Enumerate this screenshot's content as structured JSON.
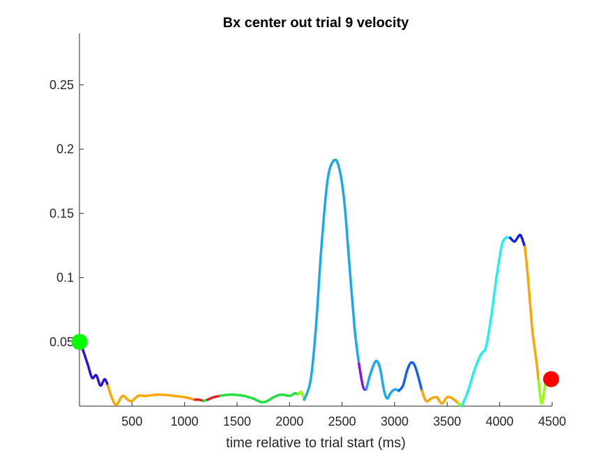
{
  "chart_data": {
    "type": "line",
    "title": "Bx  center out trial 9 velocity",
    "xlabel": "time relative to trial start (ms)",
    "ylabel": "",
    "xlim": [
      0,
      4500
    ],
    "ylim": [
      0,
      0.29
    ],
    "xticks": [
      500,
      1000,
      1500,
      2000,
      2500,
      3000,
      3500,
      4000,
      4500
    ],
    "yticks": [
      0.05,
      0.1,
      0.15,
      0.2,
      0.25
    ],
    "xtick_labels": [
      "500",
      "1000",
      "1500",
      "2000",
      "2500",
      "3000",
      "3500",
      "4000",
      "4500"
    ],
    "ytick_labels": [
      "0.05",
      "0.1",
      "0.15",
      "0.2",
      "0.25"
    ],
    "grid": false,
    "segments": [
      {
        "color": "#2a10e6",
        "points": [
          [
            0,
            0.05
          ],
          [
            40,
            0.042
          ],
          [
            80,
            0.032
          ],
          [
            120,
            0.022
          ],
          [
            160,
            0.024
          ],
          [
            200,
            0.016
          ],
          [
            240,
            0.021
          ],
          [
            270,
            0.016
          ]
        ]
      },
      {
        "color": "#ffa500",
        "points": [
          [
            270,
            0.016
          ],
          [
            310,
            0.006
          ],
          [
            350,
            0.001
          ],
          [
            390,
            0.006
          ],
          [
            420,
            0.008
          ],
          [
            460,
            0.005
          ],
          [
            500,
            0.004
          ],
          [
            560,
            0.008
          ],
          [
            640,
            0.008
          ],
          [
            760,
            0.009
          ],
          [
            900,
            0.008
          ],
          [
            1000,
            0.007
          ],
          [
            1100,
            0.005
          ]
        ]
      },
      {
        "color": "#e02020",
        "points": [
          [
            1100,
            0.005
          ],
          [
            1140,
            0.005
          ],
          [
            1180,
            0.004
          ]
        ]
      },
      {
        "color": "#20e040",
        "points": [
          [
            1180,
            0.004
          ],
          [
            1220,
            0.005
          ]
        ]
      },
      {
        "color": "#e02020",
        "points": [
          [
            1220,
            0.005
          ],
          [
            1280,
            0.007
          ],
          [
            1340,
            0.008
          ]
        ]
      },
      {
        "color": "#20e040",
        "points": [
          [
            1340,
            0.008
          ],
          [
            1440,
            0.009
          ],
          [
            1560,
            0.008
          ],
          [
            1650,
            0.006
          ],
          [
            1750,
            0.003
          ],
          [
            1850,
            0.007
          ],
          [
            1920,
            0.009
          ],
          [
            2000,
            0.008
          ],
          [
            2050,
            0.01
          ],
          [
            2080,
            0.009
          ]
        ]
      },
      {
        "color": "#90ff10",
        "points": [
          [
            2080,
            0.009
          ],
          [
            2110,
            0.011
          ],
          [
            2140,
            0.005
          ]
        ]
      },
      {
        "color": "#18a8f0",
        "points": [
          [
            2140,
            0.005
          ],
          [
            2200,
            0.02
          ],
          [
            2250,
            0.06
          ],
          [
            2300,
            0.12
          ],
          [
            2360,
            0.175
          ],
          [
            2420,
            0.191
          ],
          [
            2470,
            0.186
          ],
          [
            2520,
            0.16
          ],
          [
            2570,
            0.11
          ],
          [
            2620,
            0.06
          ],
          [
            2660,
            0.033
          ]
        ]
      },
      {
        "color": "#8a10e6",
        "points": [
          [
            2660,
            0.033
          ],
          [
            2700,
            0.015
          ],
          [
            2730,
            0.013
          ]
        ]
      },
      {
        "color": "#18a8f0",
        "points": [
          [
            2730,
            0.013
          ],
          [
            2770,
            0.025
          ],
          [
            2820,
            0.035
          ],
          [
            2860,
            0.03
          ],
          [
            2900,
            0.012
          ],
          [
            2930,
            0.006
          ],
          [
            2960,
            0.01
          ],
          [
            3000,
            0.013
          ],
          [
            3040,
            0.012
          ]
        ]
      },
      {
        "color": "#1060f0",
        "points": [
          [
            3040,
            0.012
          ],
          [
            3080,
            0.016
          ],
          [
            3120,
            0.028
          ],
          [
            3160,
            0.034
          ],
          [
            3200,
            0.03
          ],
          [
            3260,
            0.012
          ]
        ]
      },
      {
        "color": "#ffa500",
        "points": [
          [
            3260,
            0.012
          ],
          [
            3300,
            0.004
          ],
          [
            3350,
            0.006
          ],
          [
            3400,
            0.007
          ],
          [
            3450,
            0.002
          ],
          [
            3500,
            0.007
          ],
          [
            3550,
            0.006
          ],
          [
            3610,
            0.002
          ]
        ]
      },
      {
        "color": "#90ff10",
        "points": [
          [
            3610,
            0.002
          ],
          [
            3640,
            0.0
          ]
        ]
      },
      {
        "color": "#20f0f0",
        "points": [
          [
            3640,
            0.0
          ],
          [
            3700,
            0.012
          ],
          [
            3760,
            0.028
          ],
          [
            3820,
            0.04
          ],
          [
            3870,
            0.046
          ],
          [
            3920,
            0.07
          ],
          [
            3970,
            0.1
          ],
          [
            4020,
            0.125
          ],
          [
            4060,
            0.131
          ],
          [
            4100,
            0.131
          ]
        ]
      },
      {
        "color": "#1020e0",
        "points": [
          [
            4100,
            0.131
          ],
          [
            4140,
            0.128
          ],
          [
            4170,
            0.131
          ],
          [
            4200,
            0.133
          ],
          [
            4240,
            0.124
          ]
        ]
      },
      {
        "color": "#ffa500",
        "points": [
          [
            4240,
            0.124
          ],
          [
            4270,
            0.1
          ],
          [
            4310,
            0.06
          ],
          [
            4350,
            0.035
          ],
          [
            4370,
            0.02
          ]
        ]
      },
      {
        "color": "#90ff10",
        "points": [
          [
            4370,
            0.02
          ],
          [
            4400,
            0.002
          ],
          [
            4440,
            0.02
          ],
          [
            4460,
            0.022
          ]
        ]
      }
    ],
    "markers": [
      {
        "x": 0,
        "y": 0.05,
        "color": "#00ff00"
      },
      {
        "x": 4490,
        "y": 0.021,
        "color": "#ff0000"
      }
    ]
  }
}
